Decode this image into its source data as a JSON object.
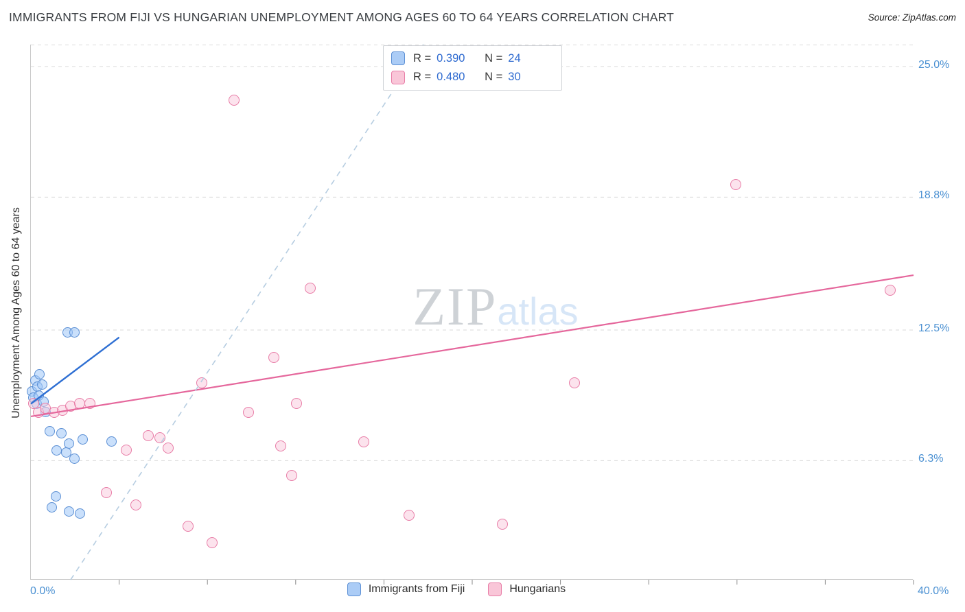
{
  "header": {
    "title": "IMMIGRANTS FROM FIJI VS HUNGARIAN UNEMPLOYMENT AMONG AGES 60 TO 64 YEARS CORRELATION CHART",
    "source": "Source: ZipAtlas.com"
  },
  "watermark": {
    "zip": "ZIP",
    "atlas": "atlas"
  },
  "colors": {
    "axis-label": "#4a90d2",
    "legend-value": "#2f6bd0"
  },
  "legend_box": {
    "rows": [
      {
        "r_prefix": "R =",
        "r_value": "0.390",
        "n_prefix": "N =",
        "n_value": "24"
      },
      {
        "r_prefix": "R =",
        "r_value": "0.480",
        "n_prefix": "N =",
        "n_value": "30"
      }
    ]
  },
  "chart_data": {
    "type": "scatter",
    "title": "IMMIGRANTS FROM FIJI VS HUNGARIAN UNEMPLOYMENT AMONG AGES 60 TO 64 YEARS CORRELATION CHART",
    "ylabel": "Unemployment Among Ages 60 to 64 years",
    "xlabel_left": "0.0%",
    "xlabel_right": "40.0%",
    "xlim": [
      0,
      40
    ],
    "ylim": [
      0.65,
      26.04
    ],
    "x_tick_step": 4,
    "grid": "dashed horizontal gridlines",
    "legend_position": "bottom-center",
    "y_gridlines": [
      6.3,
      12.5,
      18.8,
      25.0
    ],
    "y_tick_labels": [
      "6.3%",
      "12.5%",
      "18.8%",
      "25.0%"
    ],
    "series": [
      {
        "key": "fiji",
        "name": "Immigrants from Fiji",
        "R": 0.39,
        "N": 24,
        "color": "#5b8fd4",
        "fill": "rgba(158,198,248,0.55)",
        "swatch": "#abccf6",
        "dot_size": 15,
        "points": [
          [
            0.06,
            9.6
          ],
          [
            0.12,
            9.3
          ],
          [
            0.19,
            10.1
          ],
          [
            0.25,
            9.0
          ],
          [
            0.31,
            9.8
          ],
          [
            0.37,
            9.4
          ],
          [
            0.4,
            10.4
          ],
          [
            0.5,
            9.9
          ],
          [
            0.56,
            9.1
          ],
          [
            0.68,
            8.6
          ],
          [
            0.87,
            7.7
          ],
          [
            0.96,
            4.1
          ],
          [
            1.12,
            4.6
          ],
          [
            1.18,
            6.8
          ],
          [
            1.37,
            7.6
          ],
          [
            1.59,
            6.7
          ],
          [
            1.65,
            12.4
          ],
          [
            1.74,
            7.1
          ],
          [
            1.74,
            3.9
          ],
          [
            1.96,
            12.4
          ],
          [
            1.99,
            6.4
          ],
          [
            2.21,
            3.8
          ],
          [
            2.36,
            7.3
          ],
          [
            3.67,
            7.2
          ]
        ]
      },
      {
        "key": "hungarians",
        "name": "Hungarians",
        "R": 0.48,
        "N": 30,
        "color": "#e87ca6",
        "fill": "rgba(250,200,219,0.5)",
        "swatch": "#f9c6d8",
        "dot_size": 16,
        "points": [
          [
            0.12,
            9.0
          ],
          [
            0.34,
            8.6
          ],
          [
            0.65,
            8.8
          ],
          [
            1.06,
            8.6
          ],
          [
            1.43,
            8.7
          ],
          [
            1.8,
            8.9
          ],
          [
            2.21,
            9.0
          ],
          [
            2.67,
            9.0
          ],
          [
            3.42,
            4.8
          ],
          [
            4.32,
            6.8
          ],
          [
            4.76,
            4.2
          ],
          [
            5.32,
            7.5
          ],
          [
            5.85,
            7.4
          ],
          [
            6.22,
            6.9
          ],
          [
            7.12,
            3.2
          ],
          [
            7.74,
            10.0
          ],
          [
            8.21,
            2.4
          ],
          [
            9.21,
            23.4
          ],
          [
            9.86,
            8.6
          ],
          [
            11.01,
            11.2
          ],
          [
            11.32,
            7.0
          ],
          [
            11.82,
            5.6
          ],
          [
            12.04,
            9.0
          ],
          [
            12.66,
            14.5
          ],
          [
            15.08,
            7.2
          ],
          [
            17.14,
            3.7
          ],
          [
            21.37,
            3.3
          ],
          [
            24.63,
            10.0
          ],
          [
            31.94,
            19.4
          ],
          [
            38.94,
            14.4
          ]
        ]
      }
    ],
    "trend_lines": [
      {
        "series": "Immigrants from Fiji",
        "style": "solid",
        "color": "#2e6fd3",
        "width": 2.4,
        "x1": 0,
        "y1": 9.0,
        "x2": 4.0,
        "y2": 12.15
      },
      {
        "series": "Hungarians",
        "style": "solid",
        "color": "#e5679c",
        "width": 2.2,
        "x1": 0,
        "y1": 8.4,
        "x2": 40,
        "y2": 15.1
      },
      {
        "series": "projection",
        "style": "dashed",
        "color": "#b6cde1",
        "width": 1.6,
        "x1": 1.8,
        "y1": 0.65,
        "x2": 17.8,
        "y2": 26.04
      }
    ]
  }
}
